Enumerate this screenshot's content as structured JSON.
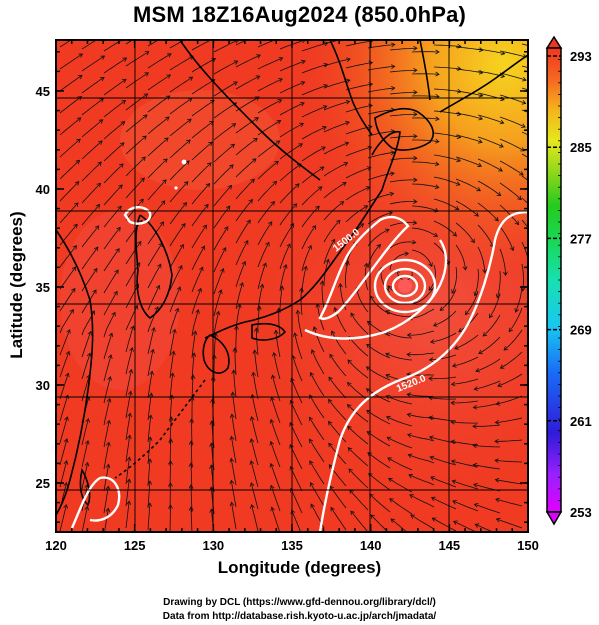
{
  "title": "MSM 18Z16Aug2024 (850.0hPa)",
  "xlabel": "Longitude (degrees)",
  "ylabel": "Latitude  (degrees)",
  "x_ticks": [
    "120",
    "125",
    "130",
    "135",
    "140",
    "145",
    "150"
  ],
  "y_ticks": [
    "25",
    "30",
    "35",
    "40",
    "45"
  ],
  "colorbar_ticks": [
    "293",
    "285",
    "277",
    "269",
    "261",
    "253"
  ],
  "contour_labels": [
    "1500.0",
    "1520.0"
  ],
  "credits": {
    "line1": "Drawing by DCL (https://www.gfd-dennou.org/library/dcl/)",
    "line2": "Data from http://database.rish.kyoto-u.ac.jp/arch/jmadata/"
  },
  "map": {
    "lon_range": [
      120,
      150
    ],
    "lat_range": [
      22.5,
      47.6
    ],
    "field": "temperature (K) shaded, streamlines, geopotential height contours",
    "typhoon_center": {
      "lon": 142.3,
      "lat": 35.8
    }
  },
  "colors": {
    "background_field": "#f03a22",
    "warm_north": "#f7b91e",
    "contour": "#ffffff"
  }
}
